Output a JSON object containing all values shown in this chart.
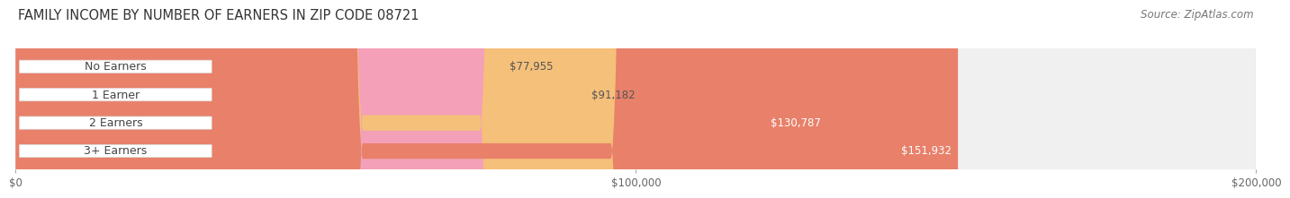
{
  "title": "FAMILY INCOME BY NUMBER OF EARNERS IN ZIP CODE 08721",
  "source": "Source: ZipAtlas.com",
  "categories": [
    "No Earners",
    "1 Earner",
    "2 Earners",
    "3+ Earners"
  ],
  "values": [
    77955,
    91182,
    130787,
    151932
  ],
  "bar_colors": [
    "#b3b3d9",
    "#f4a0b8",
    "#f5c07a",
    "#e8806a"
  ],
  "label_colors": [
    "#555555",
    "#555555",
    "#ffffff",
    "#ffffff"
  ],
  "xlim": [
    0,
    200000
  ],
  "xticks": [
    0,
    100000,
    200000
  ],
  "xtick_labels": [
    "$0",
    "$100,000",
    "$200,000"
  ],
  "background_color": "#ffffff",
  "bar_bg_color": "#f0f0f0",
  "bar_bg_border_color": "#e0e0e0",
  "title_fontsize": 10.5,
  "source_fontsize": 8.5,
  "label_fontsize": 8.5,
  "category_fontsize": 9,
  "tick_fontsize": 8.5,
  "bar_height": 0.55,
  "pill_rounding": 0.28
}
